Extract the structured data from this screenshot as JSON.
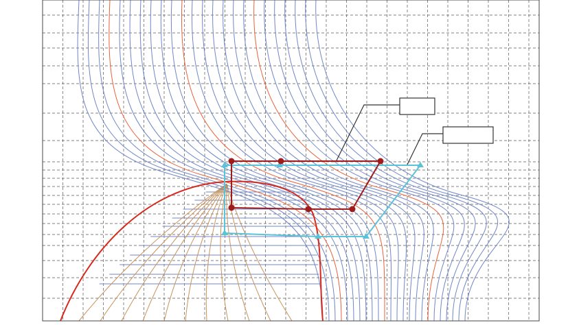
{
  "diagram": {
    "colors": {
      "grid": "#555555",
      "isotherm": "#6f86c8",
      "isotherm_highlight": "#e8603a",
      "saturation_dome": "#d8281c",
      "quality_lines": "#c8925a",
      "cycle_primary": "#a01c1c",
      "cycle_secondary": "#5bc3d8",
      "label_box": "#333333"
    },
    "labels": [
      {
        "text": ""
      },
      {
        "text": ""
      }
    ]
  }
}
